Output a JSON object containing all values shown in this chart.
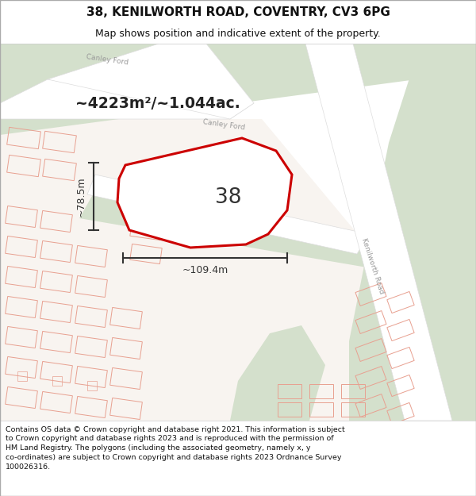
{
  "title_line1": "38, KENILWORTH ROAD, COVENTRY, CV3 6PG",
  "title_line2": "Map shows position and indicative extent of the property.",
  "footer_text": "Contains OS data © Crown copyright and database right 2021. This information is subject\nto Crown copyright and database rights 2023 and is reproduced with the permission of\nHM Land Registry. The polygons (including the associated geometry, namely x, y\nco-ordinates) are subject to Crown copyright and database rights 2023 Ordnance Survey\n100026316.",
  "area_label": "~4223m²/~1.044ac.",
  "plot_number": "38",
  "dim_width": "~109.4m",
  "dim_height": "~78.5m",
  "map_bg": "#f5f2ee",
  "green_color": "#d4e0cc",
  "white_road": "#ffffff",
  "building_outline": "#e8a090",
  "plot_outline": "#cc0000",
  "plot_fill": "#ffffff",
  "dim_color": "#333333",
  "road_text_color": "#999999",
  "title_color": "#111111",
  "footer_color": "#111111"
}
